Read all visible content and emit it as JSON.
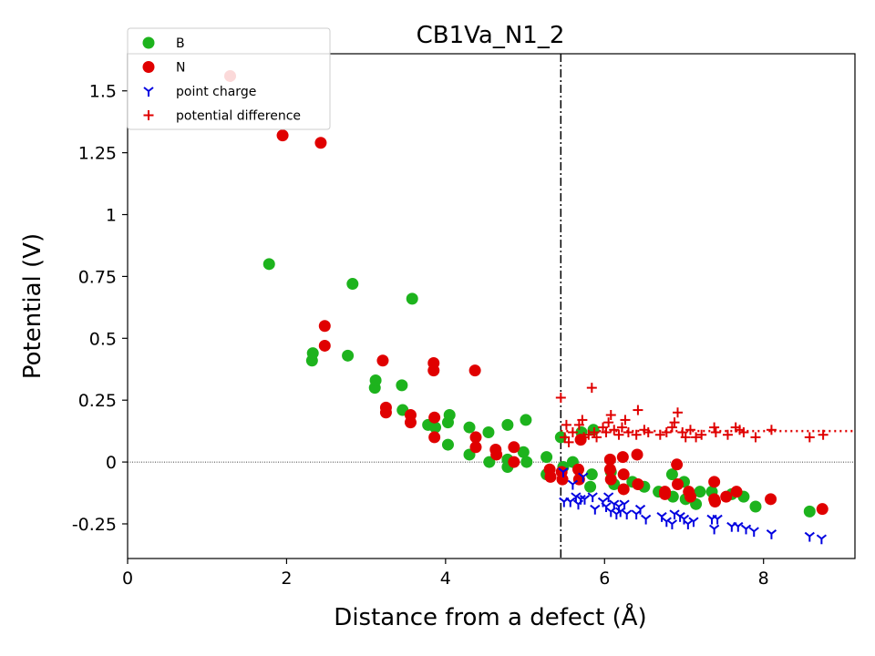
{
  "chart_data": {
    "type": "scatter",
    "title": "CB1Va_N1_2",
    "xlabel": "Distance from a defect (Å)",
    "ylabel": "Potential (V)",
    "xlim": [
      0,
      9.15
    ],
    "ylim": [
      -0.39,
      1.65
    ],
    "x_ticks": [
      {
        "value": 0,
        "label": "0"
      },
      {
        "value": 2,
        "label": "2"
      },
      {
        "value": 4,
        "label": "4"
      },
      {
        "value": 6,
        "label": "6"
      },
      {
        "value": 8,
        "label": "8"
      }
    ],
    "y_ticks": [
      {
        "value": -0.25,
        "label": "-0.25"
      },
      {
        "value": 0,
        "label": "0"
      },
      {
        "value": 0.25,
        "label": "0.25"
      },
      {
        "value": 0.5,
        "label": "0.5"
      },
      {
        "value": 0.75,
        "label": "0.75"
      },
      {
        "value": 1,
        "label": "1"
      },
      {
        "value": 1.25,
        "label": "1.25"
      },
      {
        "value": 1.5,
        "label": "1.5"
      }
    ],
    "grid": false,
    "legend_position": "top-left",
    "defect_region_boundary_x": 5.45,
    "zero_reference_line_y": 0,
    "average_potential_difference": 0.125,
    "series": [
      {
        "name": "B",
        "marker": "circle",
        "color": "#1db31d",
        "points": [
          [
            1.78,
            0.8
          ],
          [
            2.32,
            0.41
          ],
          [
            2.33,
            0.44
          ],
          [
            2.77,
            0.43
          ],
          [
            2.83,
            0.72
          ],
          [
            3.11,
            0.3
          ],
          [
            3.12,
            0.33
          ],
          [
            3.45,
            0.31
          ],
          [
            3.46,
            0.21
          ],
          [
            3.58,
            0.66
          ],
          [
            3.78,
            0.15
          ],
          [
            3.87,
            0.14
          ],
          [
            4.03,
            0.16
          ],
          [
            4.05,
            0.19
          ],
          [
            4.03,
            0.07
          ],
          [
            4.3,
            0.14
          ],
          [
            4.3,
            0.03
          ],
          [
            4.54,
            0.12
          ],
          [
            4.55,
            0.0
          ],
          [
            4.78,
            0.15
          ],
          [
            4.78,
            -0.02
          ],
          [
            4.78,
            0.01
          ],
          [
            4.98,
            0.04
          ],
          [
            5.01,
            0.17
          ],
          [
            5.02,
            0.0
          ],
          [
            5.27,
            0.02
          ],
          [
            5.27,
            -0.05
          ],
          [
            5.45,
            0.1
          ],
          [
            5.48,
            -0.02
          ],
          [
            5.6,
            0.0
          ],
          [
            5.71,
            0.12
          ],
          [
            5.82,
            -0.1
          ],
          [
            5.84,
            -0.05
          ],
          [
            5.86,
            0.13
          ],
          [
            6.08,
            -0.04
          ],
          [
            6.12,
            -0.09
          ],
          [
            6.35,
            -0.08
          ],
          [
            6.5,
            -0.1
          ],
          [
            6.68,
            -0.12
          ],
          [
            6.85,
            -0.05
          ],
          [
            6.86,
            -0.14
          ],
          [
            7.0,
            -0.08
          ],
          [
            7.02,
            -0.15
          ],
          [
            7.15,
            -0.17
          ],
          [
            7.2,
            -0.12
          ],
          [
            7.35,
            -0.12
          ],
          [
            7.6,
            -0.13
          ],
          [
            7.75,
            -0.14
          ],
          [
            7.9,
            -0.18
          ],
          [
            8.58,
            -0.2
          ]
        ]
      },
      {
        "name": "N",
        "marker": "circle",
        "color": "#e00000",
        "points": [
          [
            1.29,
            1.56
          ],
          [
            1.95,
            1.32
          ],
          [
            2.43,
            1.29
          ],
          [
            2.48,
            0.55
          ],
          [
            2.48,
            0.47
          ],
          [
            3.21,
            0.41
          ],
          [
            3.25,
            0.22
          ],
          [
            3.25,
            0.2
          ],
          [
            3.56,
            0.19
          ],
          [
            3.56,
            0.16
          ],
          [
            3.85,
            0.4
          ],
          [
            3.85,
            0.37
          ],
          [
            3.86,
            0.18
          ],
          [
            3.86,
            0.1
          ],
          [
            4.37,
            0.37
          ],
          [
            4.38,
            0.1
          ],
          [
            4.38,
            0.06
          ],
          [
            4.63,
            0.05
          ],
          [
            4.64,
            0.03
          ],
          [
            4.86,
            0.06
          ],
          [
            4.86,
            0.0
          ],
          [
            5.31,
            -0.03
          ],
          [
            5.32,
            -0.06
          ],
          [
            5.46,
            -0.04
          ],
          [
            5.47,
            -0.07
          ],
          [
            5.67,
            -0.03
          ],
          [
            5.68,
            -0.07
          ],
          [
            5.7,
            0.09
          ],
          [
            6.07,
            0.01
          ],
          [
            6.07,
            -0.03
          ],
          [
            6.08,
            -0.07
          ],
          [
            6.23,
            0.02
          ],
          [
            6.24,
            -0.05
          ],
          [
            6.24,
            -0.11
          ],
          [
            6.41,
            0.03
          ],
          [
            6.42,
            -0.09
          ],
          [
            6.76,
            -0.13
          ],
          [
            6.76,
            -0.12
          ],
          [
            6.91,
            -0.01
          ],
          [
            6.92,
            -0.09
          ],
          [
            7.06,
            -0.12
          ],
          [
            7.08,
            -0.14
          ],
          [
            7.38,
            -0.08
          ],
          [
            7.38,
            -0.15
          ],
          [
            7.39,
            -0.16
          ],
          [
            7.53,
            -0.14
          ],
          [
            7.66,
            -0.12
          ],
          [
            8.09,
            -0.15
          ],
          [
            8.74,
            -0.19
          ]
        ]
      },
      {
        "name": "point charge",
        "marker": "tri_down",
        "color": "#0000e0",
        "points": [
          [
            5.48,
            -0.04
          ],
          [
            5.49,
            -0.16
          ],
          [
            5.57,
            -0.16
          ],
          [
            5.6,
            -0.09
          ],
          [
            5.64,
            -0.14
          ],
          [
            5.67,
            -0.17
          ],
          [
            5.7,
            -0.15
          ],
          [
            5.73,
            -0.06
          ],
          [
            5.75,
            -0.15
          ],
          [
            5.85,
            -0.14
          ],
          [
            5.88,
            -0.19
          ],
          [
            5.98,
            -0.16
          ],
          [
            6.02,
            -0.18
          ],
          [
            6.05,
            -0.14
          ],
          [
            6.08,
            -0.2
          ],
          [
            6.12,
            -0.17
          ],
          [
            6.15,
            -0.21
          ],
          [
            6.18,
            -0.18
          ],
          [
            6.2,
            -0.2
          ],
          [
            6.25,
            -0.17
          ],
          [
            6.28,
            -0.21
          ],
          [
            6.4,
            -0.21
          ],
          [
            6.45,
            -0.19
          ],
          [
            6.52,
            -0.23
          ],
          [
            6.72,
            -0.22
          ],
          [
            6.78,
            -0.24
          ],
          [
            6.85,
            -0.25
          ],
          [
            6.88,
            -0.21
          ],
          [
            6.95,
            -0.22
          ],
          [
            7.0,
            -0.23
          ],
          [
            7.05,
            -0.25
          ],
          [
            7.12,
            -0.24
          ],
          [
            7.35,
            -0.23
          ],
          [
            7.38,
            -0.27
          ],
          [
            7.42,
            -0.23
          ],
          [
            7.6,
            -0.26
          ],
          [
            7.68,
            -0.26
          ],
          [
            7.78,
            -0.27
          ],
          [
            7.88,
            -0.28
          ],
          [
            8.1,
            -0.29
          ],
          [
            8.58,
            -0.3
          ],
          [
            8.73,
            -0.31
          ]
        ]
      },
      {
        "name": "potential difference",
        "marker": "plus",
        "color": "#e00000",
        "points": [
          [
            5.45,
            0.26
          ],
          [
            5.5,
            0.1
          ],
          [
            5.52,
            0.15
          ],
          [
            5.55,
            0.08
          ],
          [
            5.6,
            0.12
          ],
          [
            5.68,
            0.15
          ],
          [
            5.72,
            0.17
          ],
          [
            5.74,
            0.1
          ],
          [
            5.8,
            0.11
          ],
          [
            5.84,
            0.3
          ],
          [
            5.87,
            0.12
          ],
          [
            5.9,
            0.1
          ],
          [
            5.98,
            0.14
          ],
          [
            6.02,
            0.12
          ],
          [
            6.05,
            0.16
          ],
          [
            6.08,
            0.19
          ],
          [
            6.12,
            0.13
          ],
          [
            6.18,
            0.11
          ],
          [
            6.22,
            0.14
          ],
          [
            6.26,
            0.17
          ],
          [
            6.3,
            0.12
          ],
          [
            6.4,
            0.11
          ],
          [
            6.42,
            0.21
          ],
          [
            6.5,
            0.13
          ],
          [
            6.55,
            0.12
          ],
          [
            6.7,
            0.11
          ],
          [
            6.78,
            0.12
          ],
          [
            6.85,
            0.14
          ],
          [
            6.88,
            0.16
          ],
          [
            6.92,
            0.2
          ],
          [
            6.98,
            0.12
          ],
          [
            7.02,
            0.1
          ],
          [
            7.08,
            0.13
          ],
          [
            7.15,
            0.1
          ],
          [
            7.22,
            0.11
          ],
          [
            7.38,
            0.14
          ],
          [
            7.4,
            0.12
          ],
          [
            7.55,
            0.11
          ],
          [
            7.65,
            0.14
          ],
          [
            7.7,
            0.13
          ],
          [
            7.75,
            0.12
          ],
          [
            7.9,
            0.1
          ],
          [
            8.1,
            0.13
          ],
          [
            8.58,
            0.1
          ],
          [
            8.75,
            0.11
          ]
        ]
      }
    ]
  }
}
